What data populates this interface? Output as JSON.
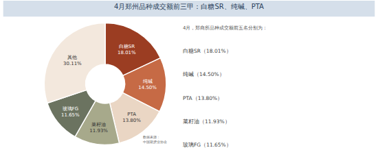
{
  "chart_data": {
    "type": "pie",
    "title": "4月郑州品种成交额前三甲：白糖SR、纯碱、PTA",
    "categories": [
      "白糖SR",
      "纯碱",
      "PTA",
      "菜籽油",
      "玻璃FG",
      "其他"
    ],
    "values": [
      18.01,
      14.5,
      13.8,
      11.93,
      11.65,
      30.11
    ],
    "value_labels": [
      "18.01%",
      "14.50%",
      "13.80%",
      "11.93%",
      "11.65%",
      "30.11%"
    ],
    "colors": [
      "#9b3d22",
      "#c66a45",
      "#ead6c4",
      "#a7a98b",
      "#6b7360",
      "#f3e8dd"
    ],
    "data_labels": true,
    "legend": false,
    "annotations": {
      "intro": "4月，郑商所品种成交额前五名分别为：",
      "list": [
        "白糖SR（18.01%）",
        "纯碱（14.50%）",
        "PTA（13.80%）",
        "菜籽油（11.93%）",
        "玻璃FG（11.65%）"
      ],
      "source": [
        "数据来源：",
        "中国期货业协会"
      ]
    }
  }
}
